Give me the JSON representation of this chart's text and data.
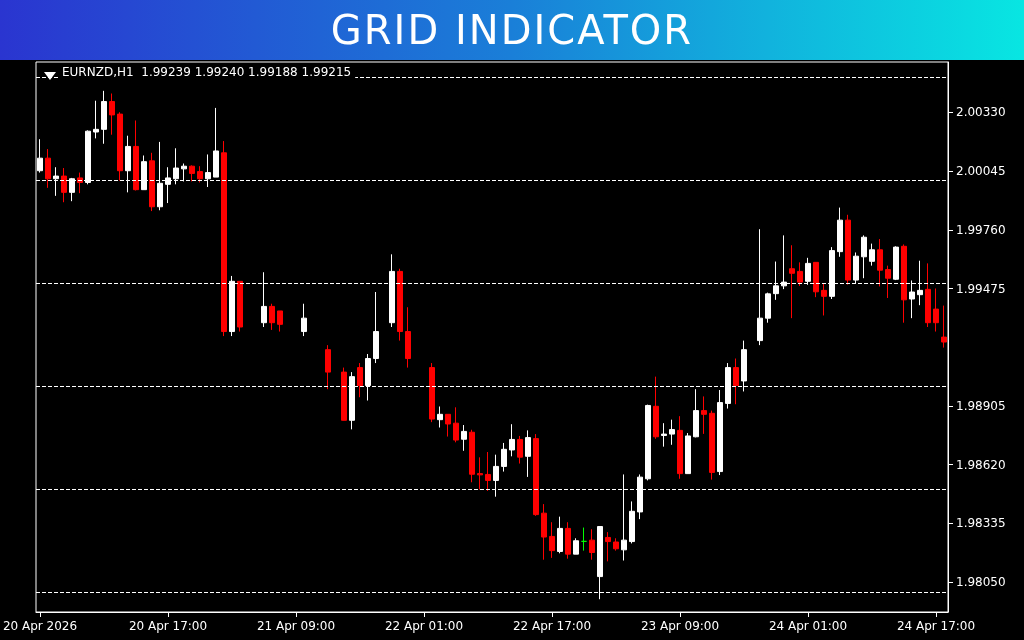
{
  "chart_data": {
    "type": "candlestick",
    "title": "GRID INDICATOR",
    "subtitle": "EURNZD,H1  1.99239 1.99240 1.99188 1.99215",
    "categories": [
      "20 Apr 2026",
      null,
      null,
      null,
      null,
      null,
      null,
      null,
      null,
      null,
      null,
      null,
      null,
      null,
      null,
      null,
      "20 Apr 17:00",
      null,
      null,
      null,
      null,
      null,
      null,
      null,
      null,
      null,
      null,
      null,
      null,
      null,
      null,
      null,
      "21 Apr 09:00",
      null,
      null,
      null,
      null,
      null,
      null,
      null,
      null,
      null,
      null,
      null,
      null,
      null,
      null,
      null,
      "22 Apr 01:00",
      null,
      null,
      null,
      null,
      null,
      null,
      null,
      null,
      null,
      null,
      null,
      null,
      null,
      null,
      null,
      "22 Apr 17:00",
      null,
      null,
      null,
      null,
      null,
      null,
      null,
      null,
      null,
      null,
      null,
      null,
      null,
      null,
      null,
      "23 Apr 09:00",
      null,
      null,
      null,
      null,
      null,
      null,
      null,
      null,
      null,
      null,
      null,
      null,
      null,
      null,
      null,
      "24 Apr 01:00",
      null,
      null,
      null,
      null,
      null,
      null,
      null,
      null,
      null,
      null,
      null,
      null,
      null,
      null,
      null,
      "24 Apr 17:00",
      null
    ],
    "ohlc": [
      [
        2.00047,
        2.002,
        2.00038,
        2.00108
      ],
      [
        2.00108,
        2.00152,
        1.99964,
        2.00008
      ],
      [
        2.00008,
        2.00064,
        1.99925,
        2.00021
      ],
      [
        2.00021,
        2.0006,
        1.99894,
        1.99942
      ],
      [
        1.99942,
        2.00012,
        1.99899,
        2.00008
      ],
      [
        2.00012,
        2.00038,
        1.99938,
        1.9999
      ],
      [
        1.9999,
        2.00243,
        1.99981,
        2.00239
      ],
      [
        2.00235,
        2.00387,
        2.00204,
        2.00248
      ],
      [
        2.00248,
        2.00435,
        2.00178,
        2.00383
      ],
      [
        2.00383,
        2.00422,
        2.00222,
        2.00318
      ],
      [
        2.00322,
        2.00331,
        1.99999,
        2.00047
      ],
      [
        2.00047,
        2.00217,
        1.99942,
        2.00165
      ],
      [
        2.00165,
        2.00291,
        1.99951,
        1.99955
      ],
      [
        1.99955,
        2.00121,
        1.99955,
        2.00091
      ],
      [
        2.00095,
        2.00134,
        1.99851,
        1.99872
      ],
      [
        1.99872,
        2.00187,
        1.99855,
        1.99986
      ],
      [
        1.99981,
        2.00064,
        1.9989,
        2.00012
      ],
      [
        2.00008,
        2.00156,
        1.99981,
        2.0006
      ],
      [
        2.00056,
        2.00082,
        1.99995,
        2.00069
      ],
      [
        2.00069,
        2.00073,
        1.99995,
        2.00034
      ],
      [
        2.00043,
        2.00069,
        1.9999,
        2.00008
      ],
      [
        2.00008,
        2.00126,
        1.99968,
        2.00038
      ],
      [
        2.00016,
        2.00352,
        2.00016,
        2.00143
      ],
      [
        2.00134,
        2.00191,
        1.99244,
        1.99266
      ],
      [
        1.99266,
        1.99536,
        1.99244,
        1.9951
      ],
      [
        1.9951,
        1.9951,
        1.99266,
        1.99288
      ],
      null,
      null,
      [
        1.99309,
        1.99554,
        1.99288,
        1.99388
      ],
      [
        1.99388,
        1.99401,
        1.99274,
        1.99309
      ],
      [
        1.99366,
        1.99366,
        1.99266,
        1.99301
      ],
      null,
      null,
      [
        1.99266,
        1.99401,
        1.99244,
        1.99331
      ],
      null,
      null,
      [
        1.99178,
        1.992,
        1.98986,
        1.99069
      ],
      null,
      [
        1.99069,
        1.99091,
        1.98834,
        1.98835
      ],
      [
        1.98835,
        1.99069,
        1.98791,
        1.99047
      ],
      [
        1.99091,
        1.99113,
        1.98947,
        1.99004
      ],
      [
        1.99004,
        1.99157,
        1.98931,
        1.99135
      ],
      [
        1.99135,
        1.99458,
        1.99113,
        1.99266
      ],
      null,
      [
        1.99309,
        1.99641,
        1.99288,
        1.99558
      ],
      [
        1.99558,
        1.99571,
        1.99222,
        1.99266
      ],
      [
        1.99266,
        1.99384,
        1.99091,
        1.99135
      ],
      null,
      null,
      [
        1.99091,
        1.99113,
        1.98826,
        1.98841
      ],
      [
        1.98838,
        1.98902,
        1.988,
        1.98864
      ],
      [
        1.98864,
        1.98864,
        1.98756,
        1.98817
      ],
      [
        1.98821,
        1.98898,
        1.98728,
        1.98739
      ],
      [
        1.98743,
        1.98812,
        1.98687,
        1.98781
      ],
      [
        1.98777,
        1.98789,
        1.98534,
        1.98573
      ],
      [
        1.98576,
        1.98655,
        1.98499,
        1.9857
      ],
      [
        1.98572,
        1.98681,
        1.98492,
        1.98543
      ],
      [
        1.98543,
        1.98668,
        1.98464,
        1.98611
      ],
      [
        1.98611,
        1.98725,
        1.98586,
        1.98694
      ],
      [
        1.98691,
        1.98816,
        1.9866,
        1.98742
      ],
      [
        1.98742,
        1.98759,
        1.98625,
        1.98656
      ],
      [
        1.9866,
        1.98786,
        1.9856,
        1.98751
      ],
      [
        1.98746,
        1.98768,
        1.98371,
        1.98377
      ],
      [
        1.98384,
        1.98428,
        1.98158,
        1.98268
      ],
      [
        1.98271,
        1.9834,
        1.98167,
        1.98202
      ],
      [
        1.98198,
        1.98367,
        1.98189,
        1.9831
      ],
      [
        1.9831,
        1.9834,
        1.98163,
        1.98185
      ],
      [
        1.98185,
        1.98262,
        1.98185,
        1.9825
      ],
      [
        1.98247,
        1.98314,
        1.98202,
        1.98247
      ],
      [
        1.98253,
        1.98306,
        1.98158,
        1.98193
      ],
      [
        1.98076,
        1.98319,
        1.97966,
        1.98319
      ],
      [
        1.98266,
        1.98292,
        1.9815,
        1.98246
      ],
      [
        1.98244,
        1.98262,
        1.98202,
        1.98211
      ],
      [
        1.98206,
        1.98572,
        1.98154,
        1.98253
      ],
      [
        1.98246,
        1.98441,
        1.98237,
        1.98393
      ],
      [
        1.9839,
        1.98572,
        1.98355,
        1.98559
      ],
      [
        1.98551,
        1.98911,
        1.98543,
        1.98907
      ],
      [
        1.98903,
        1.99047,
        1.98745,
        1.98755
      ],
      [
        1.98761,
        1.98821,
        1.98707,
        1.98768
      ],
      [
        1.98768,
        1.98838,
        1.98716,
        1.9879
      ],
      [
        1.98786,
        1.98855,
        1.98551,
        1.98576
      ],
      [
        1.98576,
        1.98773,
        1.98576,
        1.98759
      ],
      [
        1.98755,
        1.98986,
        1.98752,
        1.98882
      ],
      [
        1.98882,
        1.98951,
        1.98769,
        1.98864
      ],
      [
        1.98869,
        1.98882,
        1.98547,
        1.98582
      ],
      [
        1.98586,
        1.98982,
        1.98569,
        1.98921
      ],
      [
        1.98917,
        1.99113,
        1.98892,
        1.99091
      ],
      [
        1.99091,
        1.99135,
        1.98913,
        1.99004
      ],
      [
        1.99026,
        1.99222,
        1.98975,
        1.99178
      ],
      null,
      [
        1.99222,
        1.99763,
        1.992,
        1.99331
      ],
      [
        1.99331,
        1.99455,
        1.99309,
        1.99449
      ],
      [
        1.9945,
        1.99606,
        1.9942,
        1.99488
      ],
      [
        1.99488,
        1.99733,
        1.99472,
        1.99506
      ],
      [
        1.99571,
        1.99685,
        1.99331,
        1.99549
      ],
      [
        1.99558,
        1.99602,
        1.99488,
        1.99506
      ],
      [
        1.9951,
        1.99624,
        1.99493,
        1.99597
      ],
      [
        1.99602,
        1.99602,
        1.99433,
        1.99459
      ],
      [
        1.99466,
        1.99497,
        1.99344,
        1.99437
      ],
      [
        1.99437,
        1.99676,
        1.99424,
        1.99659
      ],
      [
        1.99654,
        1.99868,
        1.99629,
        1.99807
      ],
      [
        1.99807,
        1.99833,
        1.99494,
        1.99516
      ],
      [
        1.99516,
        1.9965,
        1.99498,
        1.99632
      ],
      [
        1.99629,
        1.99733,
        1.99525,
        1.99724
      ],
      [
        1.99607,
        1.99693,
        1.99586,
        1.99663
      ],
      [
        1.99663,
        1.99715,
        1.99485,
        1.99564
      ],
      [
        1.99567,
        1.99586,
        1.99429,
        1.99525
      ],
      [
        1.9952,
        1.9968,
        1.99516,
        1.99676
      ],
      [
        1.9968,
        1.99689,
        1.99309,
        1.9942
      ],
      [
        1.99424,
        1.99514,
        1.99331,
        1.99458
      ],
      [
        1.99445,
        1.9961,
        1.99394,
        1.99466
      ],
      [
        1.99471,
        1.99597,
        1.99288,
        1.99309
      ],
      [
        1.99375,
        1.99475,
        1.99266,
        1.99309
      ],
      [
        1.99239,
        1.99392,
        1.99188,
        1.99215
      ]
    ],
    "colors": [
      "#ffffff",
      "#ff0000",
      "#ffffff",
      "#ff0000",
      "#ffffff",
      "#ff0000",
      "#ffffff",
      "#ffffff",
      "#ffffff",
      "#ff0000",
      "#ff0000",
      "#ffffff",
      "#ff0000",
      "#ffffff",
      "#ff0000",
      "#ffffff",
      "#ffffff",
      "#ffffff",
      "#ffffff",
      "#ff0000",
      "#ff0000",
      "#ffffff",
      "#ffffff",
      "#ff0000",
      "#ffffff",
      "#ff0000",
      null,
      null,
      "#ffffff",
      "#ff0000",
      "#ff0000",
      null,
      null,
      "#ffffff",
      null,
      null,
      "#ff0000",
      null,
      "#ff0000",
      "#ffffff",
      "#ff0000",
      "#ffffff",
      "#ffffff",
      null,
      "#ffffff",
      "#ff0000",
      "#ff0000",
      null,
      null,
      "#ff0000",
      "#ffffff",
      "#ff0000",
      "#ff0000",
      "#ffffff",
      "#ff0000",
      "#ff0000",
      "#ff0000",
      "#ffffff",
      "#ffffff",
      "#ffffff",
      "#ff0000",
      "#ffffff",
      "#ff0000",
      "#ff0000",
      "#ff0000",
      "#ffffff",
      "#ff0000",
      "#ffffff",
      "#00ff00",
      "#ff0000",
      "#ffffff",
      "#ff0000",
      "#ff0000",
      "#ffffff",
      "#ffffff",
      "#ffffff",
      "#ffffff",
      "#ff0000",
      "#ffffff",
      "#ffffff",
      "#ff0000",
      "#ffffff",
      "#ffffff",
      "#ff0000",
      "#ff0000",
      "#ffffff",
      "#ffffff",
      "#ff0000",
      "#ffffff",
      null,
      "#ffffff",
      "#ffffff",
      "#ffffff",
      "#ffffff",
      "#ff0000",
      "#ff0000",
      "#ffffff",
      "#ff0000",
      "#ff0000",
      "#ffffff",
      "#ffffff",
      "#ff0000",
      "#ffffff",
      "#ffffff",
      "#ffffff",
      "#ff0000",
      "#ff0000",
      "#ffffff",
      "#ff0000",
      "#ffffff",
      "#ffffff",
      "#ff0000",
      "#ff0000",
      "#ff0000"
    ],
    "ylim": [
      1.97904,
      2.00575
    ],
    "yticks": [
      {
        "value": 1.9805,
        "label": "1.98050"
      },
      {
        "value": 1.98335,
        "label": "1.98335"
      },
      {
        "value": 1.9862,
        "label": "1.98620"
      },
      {
        "value": 1.98905,
        "label": "1.98905"
      },
      {
        "value": 1.99475,
        "label": "1.99475"
      },
      {
        "value": 1.9976,
        "label": "1.99760"
      },
      {
        "value": 2.00045,
        "label": "2.00045"
      },
      {
        "value": 2.0033,
        "label": "2.00330"
      }
    ],
    "ref_lines": [
      {
        "axis": "y",
        "value": 1.98,
        "color": "#ffffff",
        "line_style": "dashed"
      },
      {
        "axis": "y",
        "value": 1.985,
        "color": "#ffffff",
        "line_style": "dashed"
      },
      {
        "axis": "y",
        "value": 1.99,
        "color": "#ffffff",
        "line_style": "dashed"
      },
      {
        "axis": "y",
        "value": 1.995,
        "color": "#ffffff",
        "line_style": "dashed"
      },
      {
        "axis": "y",
        "value": 2.0,
        "color": "#ffffff",
        "line_style": "dashed"
      },
      {
        "axis": "y",
        "value": 2.005,
        "color": "#ffffff",
        "line_style": "dashed"
      }
    ]
  }
}
